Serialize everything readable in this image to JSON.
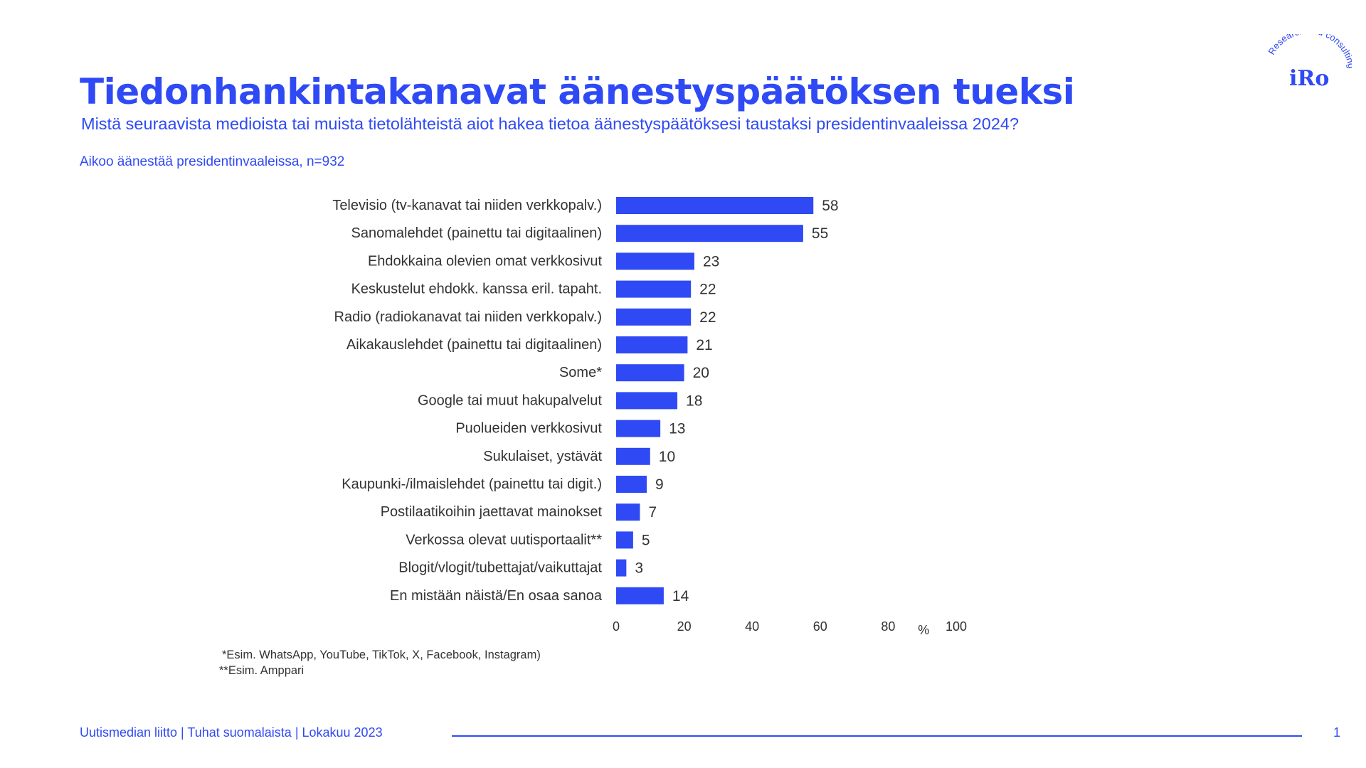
{
  "header": {
    "title": "Tiedonhankintakanavat äänestyspäätöksen tueksi",
    "subtitle": "Mistä seuraavista medioista tai muista tietolähteistä aiot hakea tietoa äänestyspäätöksesi taustaksi presidentinvaaleissa 2024?",
    "base": "Aikoo äänestää presidentinvaaleissa, n=932"
  },
  "logo": {
    "wordmark": "iRo",
    "tagline": "Research and consulting"
  },
  "chart_data": {
    "type": "bar",
    "orientation": "horizontal",
    "categories": [
      "Televisio (tv-kanavat tai niiden verkkopalv.)",
      "Sanomalehdet (painettu tai digitaalinen)",
      "Ehdokkaina olevien omat verkkosivut",
      "Keskustelut ehdokk. kanssa eril. tapaht.",
      "Radio (radiokanavat tai niiden verkkopalv.)",
      "Aikakauslehdet (painettu tai digitaalinen)",
      "Some*",
      "Google tai muut hakupalvelut",
      "Puolueiden verkkosivut",
      "Sukulaiset, ystävät",
      "Kaupunki-/ilmaislehdet (painettu tai digit.)",
      "Postilaatikoihin jaettavat mainokset",
      "Verkossa olevat uutisportaalit**",
      "Blogit/vlogit/tubettajat/vaikuttajat",
      "En mistään näistä/En osaa sanoa"
    ],
    "values": [
      58,
      55,
      23,
      22,
      22,
      21,
      20,
      18,
      13,
      10,
      9,
      7,
      5,
      3,
      14
    ],
    "xlim": [
      0,
      100
    ],
    "xticks": [
      "0",
      "20",
      "40",
      "60",
      "80",
      "100"
    ],
    "xunit": "%",
    "bar_color": "#2f4af5",
    "grid": false
  },
  "footnotes": [
    "*Esim. WhatsApp, YouTube, TikTok, X, Facebook, Instagram)",
    "**Esim. Amppari"
  ],
  "footer": {
    "text": "Uutismedian liitto | Tuhat suomalaista | Lokakuu 2023",
    "page": "1"
  },
  "colors": {
    "accent": "#2f4af5",
    "label_text": "#333333"
  }
}
